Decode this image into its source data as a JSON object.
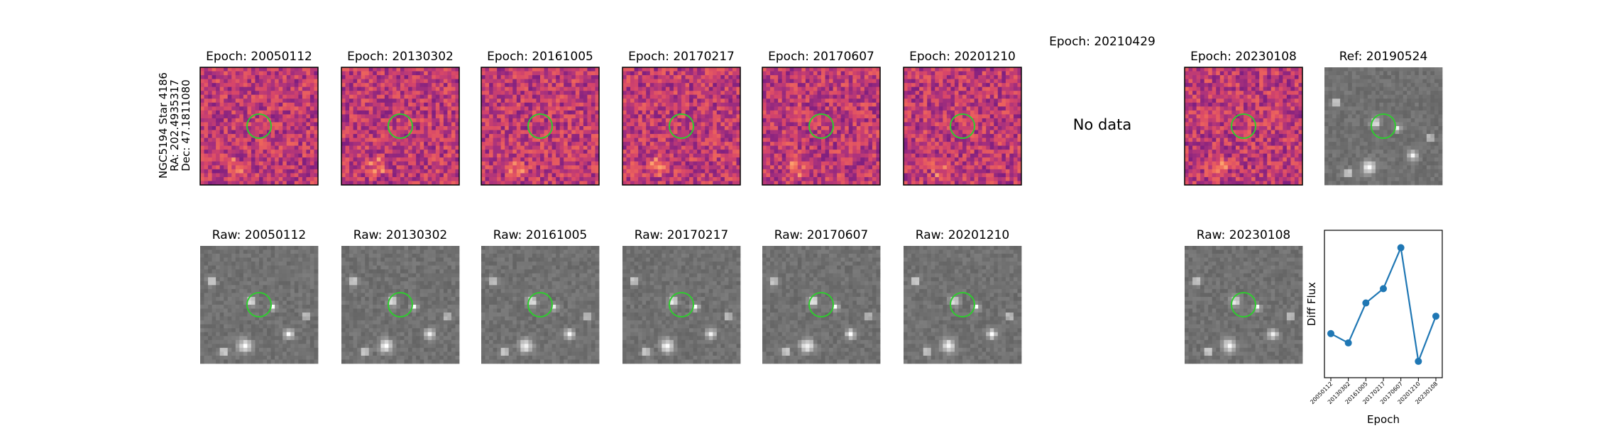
{
  "row_label": [
    "NGC5194 Star 4186",
    "RA: 202.4935317",
    "Dec: 47.1811080"
  ],
  "diff_panels": [
    {
      "title": "Epoch: 20050112"
    },
    {
      "title": "Epoch: 20130302"
    },
    {
      "title": "Epoch: 20161005"
    },
    {
      "title": "Epoch: 20170217"
    },
    {
      "title": "Epoch: 20170607"
    },
    {
      "title": "Epoch: 20201210"
    },
    {
      "title": "Epoch: 20210429",
      "message": "No data"
    },
    {
      "title": "Epoch: 20230108"
    }
  ],
  "ref_panel": {
    "title": "Ref: 20190524"
  },
  "raw_panels": [
    {
      "title": "Raw: 20050112"
    },
    {
      "title": "Raw: 20130302"
    },
    {
      "title": "Raw: 20161005"
    },
    {
      "title": "Raw: 20170217"
    },
    {
      "title": "Raw: 20170607"
    },
    {
      "title": "Raw: 20201210"
    },
    {
      "title": "Raw: 20230108"
    }
  ],
  "chart_data": {
    "type": "line",
    "xlabel": "Epoch",
    "ylabel": "Diff Flux",
    "categories": [
      "20050112",
      "20130302",
      "20161005",
      "20170217",
      "20170607",
      "20201210",
      "20230108"
    ],
    "values": [
      29.9,
      23.6,
      50.7,
      60.4,
      88.2,
      11.1,
      41.7
    ],
    "ylim": [
      0,
      100
    ],
    "color": "#1f77b4"
  }
}
